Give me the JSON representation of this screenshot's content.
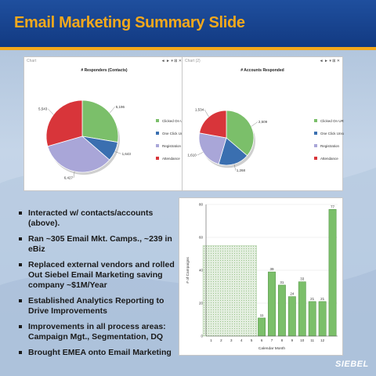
{
  "slide": {
    "title": "Email Marketing Summary Slide",
    "logo": "SIEBEL"
  },
  "panels": [
    {
      "tag": "Chart",
      "tools": "◄ ► ▾ ⊠ ✕"
    },
    {
      "tag": "Chart (2)",
      "tools": "◄ ► ▾ ⊠ ✕"
    }
  ],
  "bullets": [
    "Interacted w/ contacts/accounts (above).",
    "Ran ~305 Email Mkt. Camps., ~239 in eBiz",
    "Replaced external vendors and rolled Out Siebel Email Marketing saving company ~$1M/Year",
    "Established Analytics Reporting to Drive Improvements",
    "Improvements in all process areas: Campaign Mgt., Segmentation, DQ",
    "Brought EMEA onto Email Marketing"
  ],
  "colors": {
    "green": "#7bbf6a",
    "blue": "#3a6fb0",
    "lavender": "#a9a6d8",
    "red": "#d8353a",
    "brand_orange": "#f4a91c"
  },
  "chart_data": [
    {
      "type": "pie",
      "title": "# Responders (Contacts)",
      "labels": [
        "Clicked On URL",
        "One Click Unsub",
        "Registration",
        "Attendance"
      ],
      "values": [
        5196,
        1643,
        6427,
        5543
      ],
      "legend": "right"
    },
    {
      "type": "pie",
      "title": "# Accounts Responded",
      "labels": [
        "Clicked On URL",
        "One Click Unsub",
        "Registration",
        "Attendance"
      ],
      "values": [
        2509,
        1268,
        1610,
        1534
      ],
      "legend": "right"
    },
    {
      "type": "bar",
      "xlabel": "Calendar Month",
      "ylabel": "# of Campaigns",
      "categories": [
        "1",
        "2",
        "3",
        "4",
        "5",
        "6",
        "7",
        "8",
        "9",
        "10",
        "11",
        "12"
      ],
      "values": [
        null,
        null,
        null,
        null,
        null,
        11,
        39,
        31,
        24,
        33,
        21,
        21
      ],
      "extra": {
        "label": "77",
        "value": 77
      },
      "ylim": [
        0,
        80
      ],
      "yticks": [
        0,
        20,
        40,
        60,
        80
      ],
      "shaded_range_months": "1-5",
      "grid": true
    }
  ]
}
